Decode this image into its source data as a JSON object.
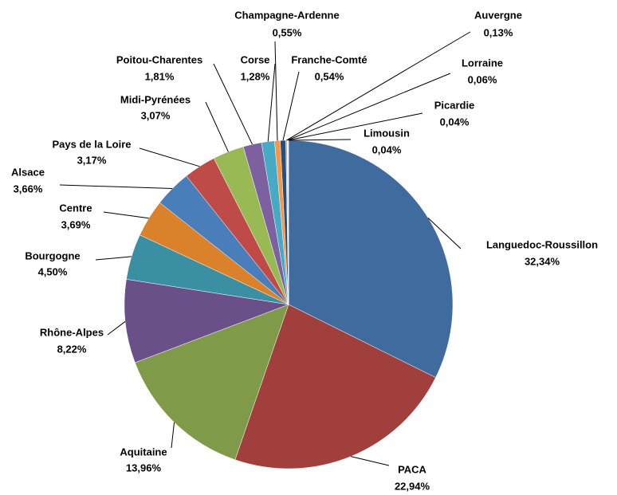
{
  "chart_data": {
    "type": "pie",
    "categories": [
      "Languedoc-Roussillon",
      "PACA",
      "Aquitaine",
      "Rhône-Alpes",
      "Bourgogne",
      "Centre",
      "Alsace",
      "Pays de la Loire",
      "Midi-Pyrénées",
      "Poitou-Charentes",
      "Corse",
      "Champagne-Ardenne",
      "Franche-Comté",
      "Auvergne",
      "Lorraine",
      "Picardie",
      "Limousin"
    ],
    "values": [
      32.34,
      22.94,
      13.96,
      8.22,
      4.5,
      3.69,
      3.66,
      3.17,
      3.07,
      1.81,
      1.28,
      0.55,
      0.54,
      0.13,
      0.06,
      0.04,
      0.04
    ],
    "value_labels": [
      "32,34%",
      "22,94%",
      "13,96%",
      "8,22%",
      "4,50%",
      "3,69%",
      "3,66%",
      "3,17%",
      "3,07%",
      "1,81%",
      "1,28%",
      "0,55%",
      "0,54%",
      "0,13%",
      "0,06%",
      "0,04%",
      "0,04%"
    ],
    "colors": [
      "#3f6b9f",
      "#a03f3c",
      "#7f9a48",
      "#6a5088",
      "#3a8fa3",
      "#d9822b",
      "#4a7ebb",
      "#be4b48",
      "#98b954",
      "#7d60a0",
      "#46aac5",
      "#f79646",
      "#2c4d75",
      "#9fb4d8",
      "#d8a9a8",
      "#c3d69b",
      "#b3a2c7"
    ]
  }
}
